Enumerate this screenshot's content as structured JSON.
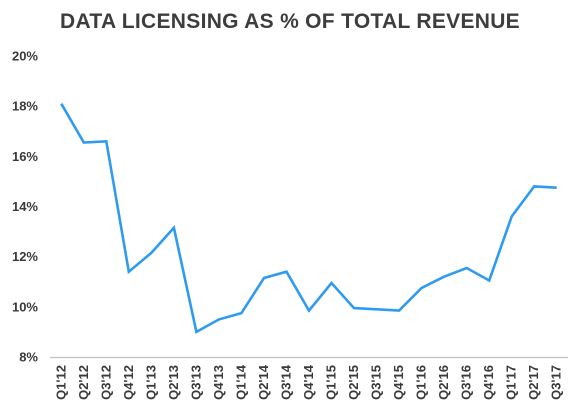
{
  "chart_data": {
    "type": "line",
    "title": "DATA LICENSING AS % OF TOTAL REVENUE",
    "xlabel": "",
    "ylabel": "",
    "categories": [
      "Q1'12",
      "Q2'12",
      "Q3'12",
      "Q4'12",
      "Q1'13",
      "Q2'13",
      "Q3'13",
      "Q4'13",
      "Q1'14",
      "Q2'14",
      "Q3'14",
      "Q4'14",
      "Q1'15",
      "Q2'15",
      "Q3'15",
      "Q4'15",
      "Q1'16",
      "Q2'16",
      "Q3'16",
      "Q4'16",
      "Q1'17",
      "Q2'17",
      "Q3'17"
    ],
    "series": [
      {
        "values": [
          18.1,
          16.55,
          16.6,
          11.4,
          12.15,
          13.15,
          9.0,
          9.5,
          9.75,
          11.15,
          11.4,
          9.85,
          10.95,
          9.95,
          9.9,
          9.85,
          10.75,
          11.2,
          11.55,
          11.05,
          13.6,
          14.8,
          14.75
        ],
        "color": "#2F9BF0"
      }
    ],
    "ylim": [
      8,
      20
    ],
    "yticks": [
      8,
      10,
      12,
      14,
      16,
      18,
      20
    ],
    "ytick_labels": [
      "8%",
      "10%",
      "12%",
      "14%",
      "16%",
      "18%",
      "20%"
    ],
    "grid": false,
    "legend": "none",
    "axis_color": "#bfbfbf"
  }
}
